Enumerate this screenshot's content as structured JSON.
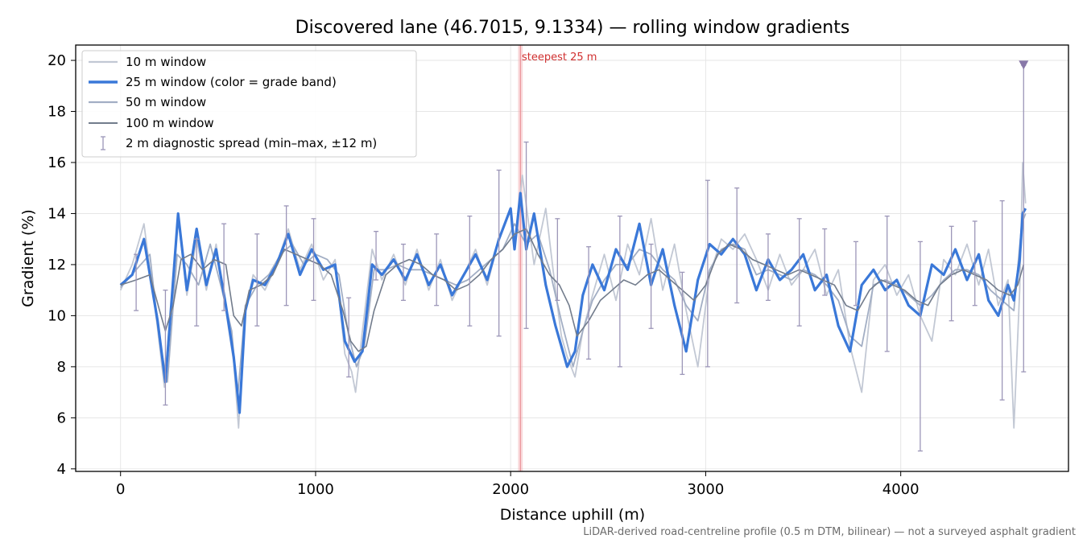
{
  "chart_data": {
    "type": "line",
    "title": "Discovered lane (46.7015, 9.1334) — rolling window gradients",
    "xlabel": "Distance uphill (m)",
    "ylabel": "Gradient (%)",
    "xlim": [
      -230,
      4860
    ],
    "ylim": [
      3.9,
      20.6
    ],
    "xticks": [
      0,
      1000,
      2000,
      3000,
      4000
    ],
    "yticks": [
      4,
      6,
      8,
      10,
      12,
      14,
      16,
      18,
      20
    ],
    "grid": true,
    "legend_position": "top-left",
    "footnote": "LiDAR-derived road-centreline profile (0.5 m DTM, bilinear) — not a surveyed asphalt gradient",
    "steepest_label": "steepest 25 m",
    "steepest_x": 2050,
    "steepest_band": [
      2038,
      2062
    ],
    "marker": {
      "x": 4630,
      "y": 19.8,
      "label": "",
      "color": "#8878a8"
    },
    "series": [
      {
        "name": "10 m window",
        "color": "#c2c8d4",
        "x": [
          0,
          60,
          120,
          190,
          225,
          260,
          295,
          340,
          390,
          440,
          490,
          540,
          580,
          605,
          635,
          680,
          740,
          800,
          860,
          920,
          980,
          1040,
          1100,
          1150,
          1185,
          1205,
          1240,
          1290,
          1340,
          1400,
          1460,
          1520,
          1580,
          1640,
          1700,
          1760,
          1820,
          1880,
          1940,
          2000,
          2020,
          2060,
          2120,
          2180,
          2230,
          2260,
          2290,
          2330,
          2370,
          2420,
          2480,
          2540,
          2600,
          2660,
          2720,
          2780,
          2840,
          2900,
          2960,
          3020,
          3080,
          3140,
          3200,
          3260,
          3320,
          3380,
          3440,
          3500,
          3560,
          3620,
          3680,
          3740,
          3800,
          3860,
          3920,
          3980,
          4040,
          4100,
          4160,
          4220,
          4280,
          4340,
          4400,
          4450,
          4500,
          4550,
          4580,
          4610,
          4625,
          4640
        ],
        "y": [
          11.0,
          12.0,
          13.6,
          9.5,
          7.2,
          10.5,
          13.8,
          10.8,
          13.0,
          11.0,
          12.8,
          10.2,
          8.2,
          5.6,
          10.0,
          11.6,
          11.0,
          12.0,
          13.4,
          11.8,
          12.8,
          11.4,
          12.2,
          8.5,
          7.8,
          7.0,
          9.4,
          12.6,
          11.4,
          12.4,
          11.2,
          12.6,
          11.0,
          12.2,
          10.6,
          11.6,
          12.6,
          11.2,
          13.0,
          14.2,
          12.8,
          15.5,
          12.0,
          14.2,
          11.0,
          9.2,
          8.4,
          7.6,
          9.4,
          10.8,
          12.4,
          10.6,
          12.8,
          11.6,
          13.8,
          11.0,
          12.8,
          10.2,
          8.0,
          11.6,
          13.0,
          12.6,
          13.2,
          12.2,
          11.0,
          12.4,
          11.2,
          11.8,
          12.6,
          10.8,
          11.8,
          8.8,
          7.0,
          11.4,
          12.0,
          10.8,
          11.6,
          10.0,
          9.0,
          12.2,
          11.6,
          12.8,
          11.2,
          12.6,
          10.4,
          11.4,
          5.6,
          11.0,
          16.0,
          14.4
        ]
      },
      {
        "name": "25 m window (color = grade band)",
        "color": "#3a78d8",
        "x": [
          0,
          60,
          120,
          190,
          230,
          260,
          295,
          340,
          390,
          440,
          490,
          540,
          580,
          610,
          640,
          680,
          740,
          800,
          860,
          920,
          980,
          1040,
          1100,
          1150,
          1200,
          1240,
          1290,
          1340,
          1400,
          1460,
          1520,
          1580,
          1640,
          1700,
          1760,
          1820,
          1880,
          1940,
          2000,
          2020,
          2050,
          2080,
          2120,
          2180,
          2230,
          2260,
          2290,
          2330,
          2370,
          2420,
          2480,
          2540,
          2600,
          2660,
          2720,
          2780,
          2840,
          2900,
          2960,
          3020,
          3080,
          3140,
          3200,
          3260,
          3320,
          3380,
          3440,
          3500,
          3560,
          3620,
          3680,
          3740,
          3800,
          3860,
          3920,
          3980,
          4040,
          4100,
          4160,
          4220,
          4280,
          4340,
          4400,
          4450,
          4500,
          4550,
          4580,
          4610,
          4625,
          4640
        ],
        "y": [
          11.2,
          11.6,
          13.0,
          9.8,
          7.4,
          10.4,
          14.0,
          11.0,
          13.4,
          11.2,
          12.6,
          10.4,
          8.4,
          6.2,
          10.2,
          11.4,
          11.2,
          12.0,
          13.2,
          11.6,
          12.6,
          11.8,
          12.0,
          9.0,
          8.2,
          8.6,
          12.0,
          11.6,
          12.2,
          11.4,
          12.4,
          11.2,
          12.0,
          10.8,
          11.6,
          12.4,
          11.4,
          13.0,
          14.2,
          12.6,
          14.8,
          12.6,
          14.0,
          11.2,
          9.6,
          8.8,
          8.0,
          8.6,
          10.8,
          12.0,
          11.0,
          12.6,
          11.8,
          13.6,
          11.2,
          12.6,
          10.4,
          8.6,
          11.4,
          12.8,
          12.4,
          13.0,
          12.4,
          11.0,
          12.2,
          11.4,
          11.8,
          12.4,
          11.0,
          11.6,
          9.6,
          8.6,
          11.2,
          11.8,
          11.0,
          11.4,
          10.4,
          10.0,
          12.0,
          11.6,
          12.6,
          11.4,
          12.4,
          10.6,
          10.0,
          11.2,
          10.6,
          12.2,
          14.0,
          14.2
        ]
      },
      {
        "name": "50 m window",
        "color": "#a2aec4",
        "x": [
          0,
          80,
          150,
          200,
          240,
          290,
          340,
          400,
          460,
          520,
          570,
          600,
          640,
          700,
          760,
          820,
          880,
          940,
          1000,
          1060,
          1120,
          1170,
          1210,
          1250,
          1300,
          1360,
          1420,
          1480,
          1540,
          1600,
          1660,
          1720,
          1780,
          1840,
          1900,
          1960,
          2020,
          2080,
          2140,
          2200,
          2260,
          2320,
          2370,
          2420,
          2480,
          2540,
          2600,
          2660,
          2720,
          2780,
          2840,
          2900,
          2960,
          3020,
          3080,
          3140,
          3200,
          3260,
          3320,
          3380,
          3440,
          3500,
          3560,
          3620,
          3680,
          3740,
          3800,
          3860,
          3920,
          3980,
          4040,
          4100,
          4160,
          4220,
          4280,
          4340,
          4400,
          4460,
          4520,
          4580,
          4620,
          4640
        ],
        "y": [
          11.1,
          11.8,
          12.4,
          9.0,
          7.4,
          12.4,
          12.0,
          11.2,
          12.8,
          11.0,
          9.4,
          6.8,
          10.4,
          11.2,
          11.6,
          12.4,
          12.8,
          12.0,
          12.4,
          12.2,
          11.6,
          9.2,
          8.0,
          8.8,
          11.8,
          11.8,
          12.0,
          11.8,
          11.8,
          11.6,
          11.4,
          11.2,
          11.4,
          11.8,
          12.2,
          12.6,
          13.6,
          12.8,
          13.2,
          11.8,
          9.8,
          8.0,
          9.4,
          10.6,
          11.4,
          12.0,
          12.0,
          12.6,
          12.4,
          11.8,
          11.4,
          10.4,
          9.8,
          11.8,
          12.6,
          12.8,
          12.6,
          11.6,
          11.8,
          11.6,
          11.4,
          11.8,
          11.6,
          11.2,
          10.6,
          9.2,
          8.8,
          11.2,
          11.4,
          11.2,
          10.8,
          10.4,
          10.8,
          11.4,
          11.8,
          11.8,
          11.6,
          11.0,
          10.6,
          10.2,
          13.6,
          14.0
        ]
      },
      {
        "name": "100 m window",
        "color": "#727c8c",
        "x": [
          0,
          80,
          150,
          200,
          230,
          270,
          310,
          360,
          420,
          480,
          540,
          580,
          620,
          660,
          720,
          780,
          840,
          900,
          960,
          1020,
          1080,
          1140,
          1180,
          1220,
          1260,
          1300,
          1360,
          1420,
          1480,
          1540,
          1600,
          1660,
          1720,
          1780,
          1840,
          1900,
          1960,
          2020,
          2080,
          2140,
          2200,
          2250,
          2300,
          2340,
          2400,
          2460,
          2520,
          2580,
          2640,
          2700,
          2760,
          2820,
          2880,
          2940,
          3000,
          3060,
          3120,
          3180,
          3240,
          3300,
          3360,
          3420,
          3480,
          3540,
          3600,
          3660,
          3720,
          3780,
          3840,
          3900,
          3960,
          4020,
          4080,
          4140,
          4200,
          4260,
          4320,
          4380,
          4440,
          4500,
          4560,
          4600,
          4630
        ],
        "y": [
          11.2,
          11.4,
          11.6,
          10.2,
          9.4,
          10.4,
          12.2,
          12.4,
          11.8,
          12.2,
          12.0,
          10.0,
          9.6,
          11.0,
          11.2,
          11.6,
          12.6,
          12.4,
          12.2,
          12.0,
          11.6,
          10.2,
          9.0,
          8.6,
          8.8,
          10.2,
          11.6,
          12.0,
          12.2,
          12.0,
          11.6,
          11.4,
          11.0,
          11.2,
          11.6,
          12.2,
          12.6,
          13.2,
          13.4,
          12.4,
          11.6,
          11.2,
          10.4,
          9.2,
          9.8,
          10.6,
          11.0,
          11.4,
          11.2,
          11.6,
          11.8,
          11.4,
          11.0,
          10.6,
          11.2,
          12.4,
          12.8,
          12.6,
          12.2,
          12.0,
          11.8,
          11.6,
          11.8,
          11.6,
          11.4,
          11.2,
          10.4,
          10.2,
          11.0,
          11.4,
          11.2,
          11.0,
          10.6,
          10.4,
          11.2,
          11.6,
          11.8,
          11.6,
          11.4,
          11.0,
          10.8,
          11.2,
          12.0
        ]
      }
    ],
    "errorbars": {
      "name": "2 m diagnostic spread (min–max, ±12 m)",
      "color": "#9c96b8",
      "items": [
        {
          "x": 80,
          "low": 10.2,
          "high": 12.4
        },
        {
          "x": 230,
          "low": 6.5,
          "high": 11.0
        },
        {
          "x": 390,
          "low": 9.6,
          "high": 13.0
        },
        {
          "x": 530,
          "low": 10.2,
          "high": 13.6
        },
        {
          "x": 700,
          "low": 9.6,
          "high": 13.2
        },
        {
          "x": 850,
          "low": 10.4,
          "high": 14.3
        },
        {
          "x": 990,
          "low": 10.6,
          "high": 13.8
        },
        {
          "x": 1170,
          "low": 7.6,
          "high": 10.7
        },
        {
          "x": 1310,
          "low": 11.4,
          "high": 13.3
        },
        {
          "x": 1450,
          "low": 10.6,
          "high": 12.8
        },
        {
          "x": 1620,
          "low": 10.4,
          "high": 13.2
        },
        {
          "x": 1790,
          "low": 9.6,
          "high": 13.9
        },
        {
          "x": 1940,
          "low": 9.2,
          "high": 15.7
        },
        {
          "x": 2080,
          "low": 9.5,
          "high": 16.8
        },
        {
          "x": 2240,
          "low": 10.6,
          "high": 13.8
        },
        {
          "x": 2400,
          "low": 8.3,
          "high": 12.7
        },
        {
          "x": 2560,
          "low": 8.0,
          "high": 13.9
        },
        {
          "x": 2720,
          "low": 9.5,
          "high": 12.8
        },
        {
          "x": 2880,
          "low": 7.7,
          "high": 11.7
        },
        {
          "x": 3010,
          "low": 8.0,
          "high": 15.3
        },
        {
          "x": 3160,
          "low": 10.5,
          "high": 15.0
        },
        {
          "x": 3320,
          "low": 10.6,
          "high": 13.2
        },
        {
          "x": 3480,
          "low": 9.6,
          "high": 13.8
        },
        {
          "x": 3610,
          "low": 10.8,
          "high": 13.4
        },
        {
          "x": 3770,
          "low": 10.4,
          "high": 12.9
        },
        {
          "x": 3930,
          "low": 8.6,
          "high": 13.9
        },
        {
          "x": 4100,
          "low": 4.7,
          "high": 12.9
        },
        {
          "x": 4260,
          "low": 9.8,
          "high": 13.5
        },
        {
          "x": 4380,
          "low": 10.4,
          "high": 13.7
        },
        {
          "x": 4520,
          "low": 6.7,
          "high": 14.5
        },
        {
          "x": 4630,
          "low": 7.8,
          "high": 19.8
        }
      ]
    }
  }
}
